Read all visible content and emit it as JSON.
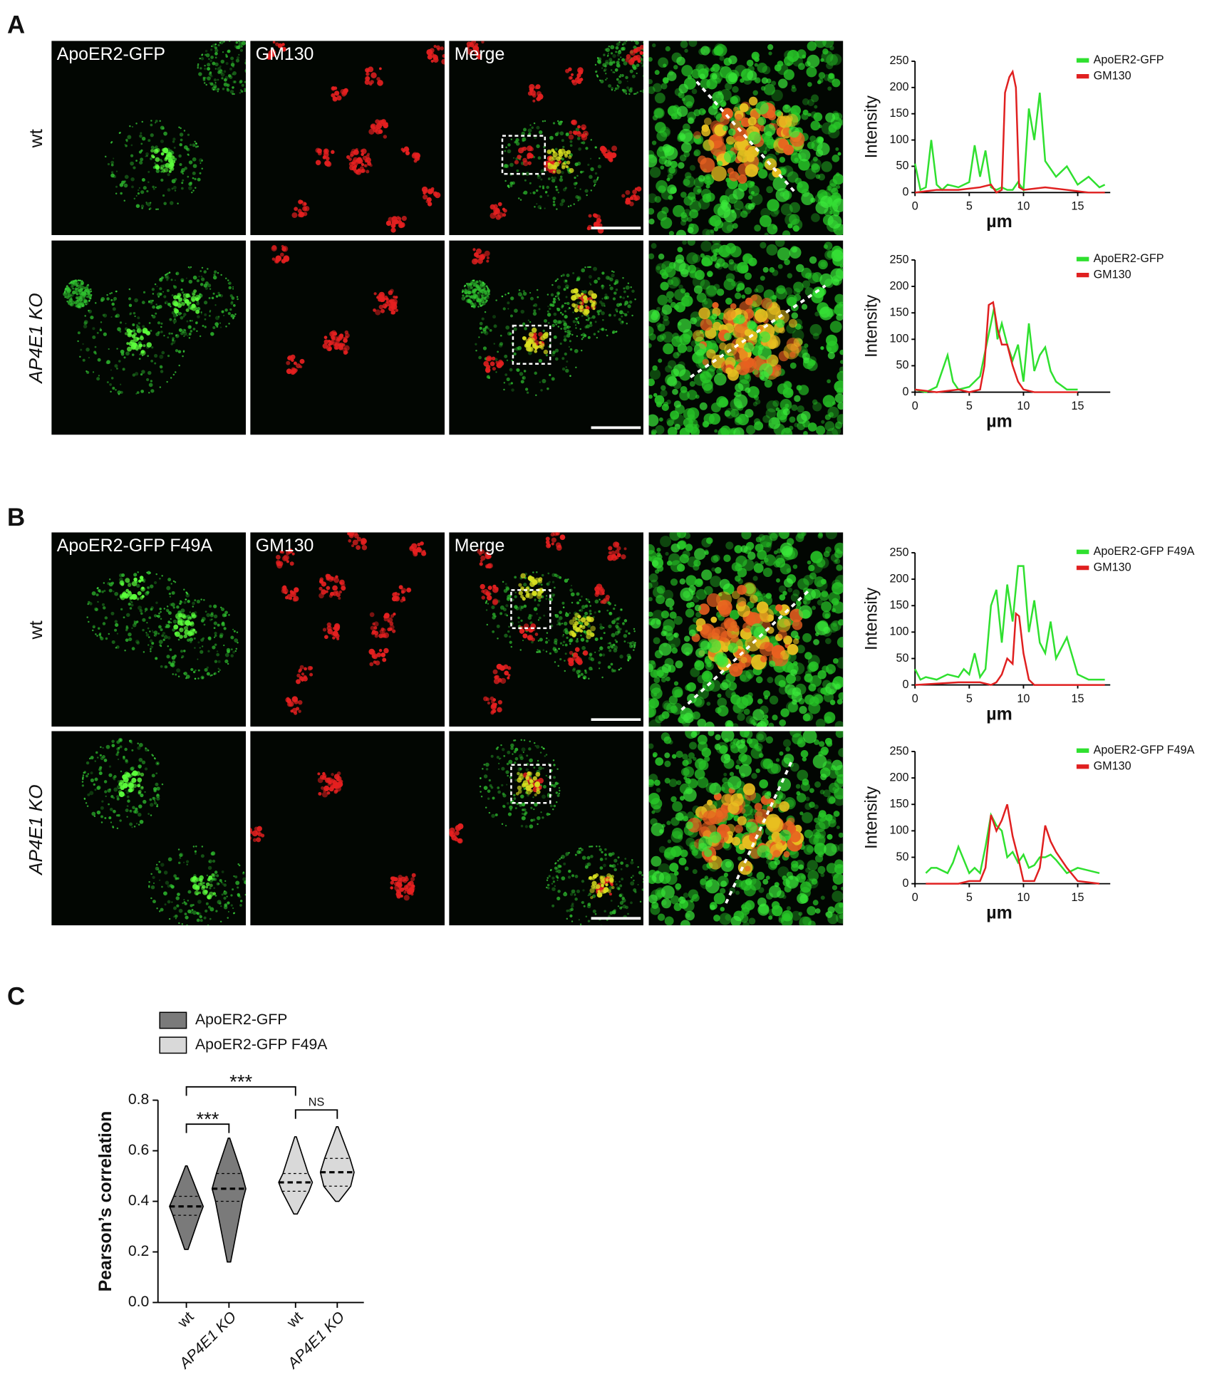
{
  "panels": [
    {
      "label": "A",
      "channels": [
        "ApoER2-GFP",
        "GM130",
        "Merge"
      ],
      "rows": [
        "wt",
        "AP4E1 KO"
      ]
    },
    {
      "label": "B",
      "channels": [
        "ApoER2-GFP F49A",
        "GM130",
        "Merge"
      ],
      "rows": [
        "wt",
        "AP4E1 KO"
      ]
    },
    {
      "label": "C"
    }
  ],
  "chart_data": [
    {
      "type": "line",
      "ylabel": "Intensity",
      "xlabel": "µm",
      "xlim": [
        0,
        18
      ],
      "ylim": [
        0,
        250
      ],
      "xticks": [
        0,
        5,
        10,
        15
      ],
      "yticks": [
        0,
        50,
        100,
        150,
        200,
        250
      ],
      "series": [
        {
          "name": "ApoER2-GFP",
          "color": "#2fe02f",
          "x": [
            0,
            0.5,
            1,
            1.5,
            2,
            2.5,
            3,
            4,
            5,
            5.5,
            6,
            6.5,
            7,
            7.5,
            8,
            8.5,
            9,
            9.5,
            10,
            10.5,
            11,
            11.5,
            12,
            13,
            14,
            15,
            16,
            17,
            17.5
          ],
          "values": [
            55,
            5,
            10,
            100,
            15,
            5,
            15,
            10,
            20,
            90,
            30,
            80,
            10,
            5,
            10,
            5,
            5,
            20,
            5,
            160,
            100,
            190,
            60,
            30,
            50,
            15,
            30,
            10,
            15
          ]
        },
        {
          "name": "GM130",
          "color": "#e02020",
          "x": [
            0,
            2,
            4,
            6,
            7,
            7.5,
            8,
            8.3,
            8.7,
            9,
            9.3,
            9.6,
            10,
            12,
            14,
            16,
            17.5
          ],
          "values": [
            0,
            5,
            5,
            10,
            15,
            0,
            5,
            190,
            220,
            230,
            200,
            10,
            5,
            10,
            5,
            0,
            0
          ]
        }
      ]
    },
    {
      "type": "line",
      "ylabel": "Intensity",
      "xlabel": "µm",
      "xlim": [
        0,
        18
      ],
      "ylim": [
        0,
        250
      ],
      "xticks": [
        0,
        5,
        10,
        15
      ],
      "yticks": [
        0,
        50,
        100,
        150,
        200,
        250
      ],
      "series": [
        {
          "name": "ApoER2-GFP",
          "color": "#2fe02f",
          "x": [
            0,
            1,
            2,
            3,
            3.5,
            4,
            5,
            6,
            6.5,
            7,
            7.3,
            7.6,
            8,
            8.5,
            9,
            9.5,
            10,
            10.5,
            11,
            11.5,
            12,
            12.5,
            13,
            14,
            15
          ],
          "values": [
            5,
            0,
            10,
            70,
            20,
            5,
            10,
            30,
            80,
            130,
            160,
            100,
            130,
            90,
            60,
            90,
            20,
            130,
            40,
            70,
            85,
            40,
            20,
            5,
            5
          ]
        },
        {
          "name": "GM130",
          "color": "#e02020",
          "x": [
            0,
            2,
            4,
            5,
            6,
            6.4,
            6.8,
            7.2,
            7.6,
            8,
            8.5,
            9,
            9.5,
            10,
            11,
            12,
            14,
            15
          ],
          "values": [
            5,
            0,
            5,
            0,
            5,
            50,
            165,
            170,
            120,
            90,
            90,
            50,
            20,
            5,
            0,
            0,
            0,
            0
          ]
        }
      ]
    },
    {
      "type": "line",
      "ylabel": "Intensity",
      "xlabel": "µm",
      "xlim": [
        0,
        18
      ],
      "ylim": [
        0,
        250
      ],
      "xticks": [
        0,
        5,
        10,
        15
      ],
      "yticks": [
        0,
        50,
        100,
        150,
        200,
        250
      ],
      "series": [
        {
          "name": "ApoER2-GFP F49A",
          "color": "#2fe02f",
          "x": [
            0,
            0.5,
            1,
            2,
            3,
            4,
            4.5,
            5,
            5.5,
            6,
            6.5,
            7,
            7.5,
            8,
            8.5,
            9,
            9.5,
            10,
            10.5,
            11,
            11.5,
            12,
            12.5,
            13,
            14,
            15,
            16,
            17,
            17.5
          ],
          "values": [
            30,
            10,
            15,
            10,
            20,
            15,
            30,
            20,
            60,
            15,
            30,
            150,
            180,
            80,
            190,
            120,
            225,
            225,
            100,
            160,
            80,
            60,
            120,
            50,
            90,
            20,
            10,
            10,
            10
          ]
        },
        {
          "name": "GM130",
          "color": "#e02020",
          "x": [
            0,
            4,
            6,
            7,
            7.5,
            8,
            8.5,
            9,
            9.3,
            9.6,
            10,
            10.5,
            11,
            13,
            15,
            17.5
          ],
          "values": [
            0,
            5,
            5,
            0,
            5,
            20,
            50,
            40,
            135,
            130,
            60,
            10,
            0,
            0,
            0,
            0
          ]
        }
      ]
    },
    {
      "type": "line",
      "ylabel": "Intensity",
      "xlabel": "µm",
      "xlim": [
        0,
        18
      ],
      "ylim": [
        0,
        250
      ],
      "xticks": [
        0,
        5,
        10,
        15
      ],
      "yticks": [
        0,
        50,
        100,
        150,
        200,
        250
      ],
      "series": [
        {
          "name": "ApoER2-GFP F49A",
          "color": "#2fe02f",
          "x": [
            1,
            1.5,
            2,
            3,
            3.5,
            4,
            5,
            5.5,
            6,
            6.5,
            7,
            7.5,
            8,
            8.5,
            9,
            9.5,
            10,
            10.5,
            11,
            11.5,
            12,
            12.5,
            13,
            14,
            15,
            17
          ],
          "values": [
            20,
            30,
            30,
            20,
            40,
            70,
            20,
            30,
            20,
            70,
            130,
            110,
            100,
            50,
            60,
            40,
            55,
            30,
            35,
            50,
            50,
            55,
            45,
            20,
            30,
            20
          ]
        },
        {
          "name": "GM130",
          "color": "#e02020",
          "x": [
            1,
            4,
            5,
            6,
            6.5,
            7,
            7.5,
            8,
            8.5,
            9,
            9.5,
            10,
            11,
            11.5,
            12,
            12.5,
            13,
            14,
            15,
            17
          ],
          "values": [
            0,
            0,
            5,
            5,
            30,
            130,
            100,
            120,
            150,
            90,
            50,
            5,
            5,
            30,
            110,
            80,
            60,
            30,
            5,
            0
          ]
        }
      ]
    },
    {
      "type": "violin",
      "ylabel": "Pearson’s correlation",
      "categories": [
        "wt",
        "AP4E1 KO",
        "wt",
        "AP4E1 KO"
      ],
      "ylim": [
        0,
        0.8
      ],
      "yticks": [
        {
          "value": 0,
          "label": "0.0"
        },
        0.2,
        0.4,
        0.6,
        0.8
      ],
      "series": [
        {
          "name": "ApoER2-GFP",
          "color": "#7a7a7a",
          "min": [
            0.21,
            0.16
          ],
          "q1": [
            0.345,
            0.4
          ],
          "median": [
            0.38,
            0.45
          ],
          "q3": [
            0.42,
            0.51
          ],
          "max": [
            0.54,
            0.65
          ]
        },
        {
          "name": "ApoER2-GFP F49A",
          "color": "#d9d9d9",
          "min": [
            0.35,
            0.4
          ],
          "q1": [
            0.44,
            0.46
          ],
          "median": [
            0.475,
            0.515
          ],
          "q3": [
            0.51,
            0.57
          ],
          "max": [
            0.655,
            0.695
          ]
        }
      ],
      "annotations": [
        "***",
        "***",
        "NS"
      ]
    }
  ]
}
